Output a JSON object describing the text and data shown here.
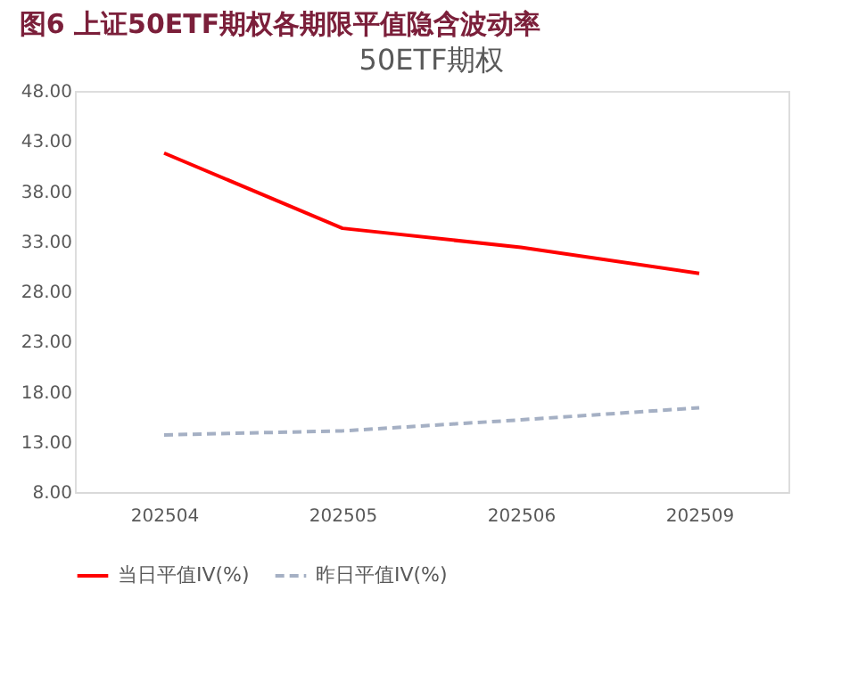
{
  "chart_data": {
    "type": "line",
    "title": "图6  上证50ETF期权各期限平值隐含波动率",
    "subtitle": "50ETF期权",
    "categories": [
      "202504",
      "202505",
      "202506",
      "202509"
    ],
    "series": [
      {
        "name": "当日平值IV(%)",
        "color": "#ff0000",
        "line_style": "solid",
        "values": [
          41.8,
          34.3,
          32.4,
          29.8
        ]
      },
      {
        "name": "昨日平值IV(%)",
        "color": "#a5b0c4",
        "line_style": "dashed",
        "values": [
          13.7,
          14.1,
          15.2,
          16.4
        ]
      }
    ],
    "ylim": [
      8,
      48
    ],
    "yticks": [
      {
        "value": 8,
        "label": "8.00"
      },
      {
        "value": 13,
        "label": "13.00"
      },
      {
        "value": 18,
        "label": "18.00"
      },
      {
        "value": 23,
        "label": "23.00"
      },
      {
        "value": 28,
        "label": "28.00"
      },
      {
        "value": 33,
        "label": "33.00"
      },
      {
        "value": 38,
        "label": "38.00"
      },
      {
        "value": 43,
        "label": "43.00"
      },
      {
        "value": 48,
        "label": "48.00"
      }
    ],
    "grid": false,
    "legend": "bottom",
    "marker": "none"
  }
}
